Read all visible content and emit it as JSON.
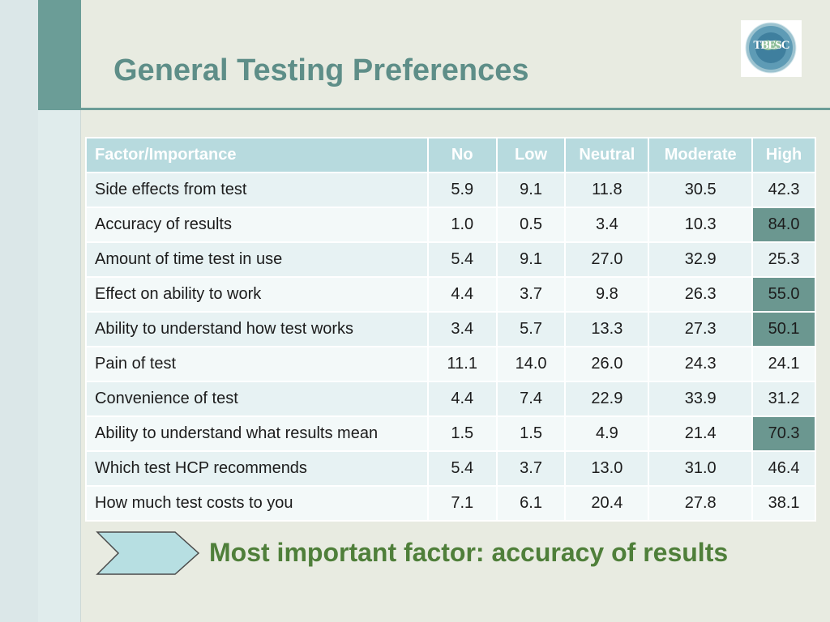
{
  "title": "General Testing Preferences",
  "logo": {
    "text": "TBESC",
    "icon": "tbesc-globe-logo"
  },
  "table": {
    "headers": [
      "Factor/Importance",
      "No",
      "Low",
      "Neutral",
      "Moderate",
      "High"
    ],
    "rows": [
      {
        "factor": "Side effects from test",
        "values": [
          "5.9",
          "9.1",
          "11.8",
          "30.5",
          "42.3"
        ],
        "highlight": false
      },
      {
        "factor": "Accuracy of results",
        "values": [
          "1.0",
          "0.5",
          "3.4",
          "10.3",
          "84.0"
        ],
        "highlight": true
      },
      {
        "factor": "Amount of time test in use",
        "values": [
          "5.4",
          "9.1",
          "27.0",
          "32.9",
          "25.3"
        ],
        "highlight": false
      },
      {
        "factor": "Effect on ability to work",
        "values": [
          "4.4",
          "3.7",
          "9.8",
          "26.3",
          "55.0"
        ],
        "highlight": true
      },
      {
        "factor": "Ability to understand how test works",
        "values": [
          "3.4",
          "5.7",
          "13.3",
          "27.3",
          "50.1"
        ],
        "highlight": true
      },
      {
        "factor": "Pain of test",
        "values": [
          "11.1",
          "14.0",
          "26.0",
          "24.3",
          "24.1"
        ],
        "highlight": false
      },
      {
        "factor": "Convenience of test",
        "values": [
          "4.4",
          "7.4",
          "22.9",
          "33.9",
          "31.2"
        ],
        "highlight": false
      },
      {
        "factor": "Ability to understand what results mean",
        "values": [
          "1.5",
          "1.5",
          "4.9",
          "21.4",
          "70.3"
        ],
        "highlight": true
      },
      {
        "factor": "Which test HCP recommends",
        "values": [
          "5.4",
          "3.7",
          "13.0",
          "31.0",
          "46.4"
        ],
        "highlight": false
      },
      {
        "factor": "How much test costs to you",
        "values": [
          "7.1",
          "6.1",
          "20.4",
          "27.8",
          "38.1"
        ],
        "highlight": false
      }
    ]
  },
  "callout": {
    "text": "Most important factor: accuracy of results",
    "icon": "chevron-arrow-icon"
  },
  "colors": {
    "accent": "#6b9d97",
    "header_fill": "#b7dade",
    "highlight_fill": "#6b9790",
    "callout_text": "#4f7f3a"
  }
}
